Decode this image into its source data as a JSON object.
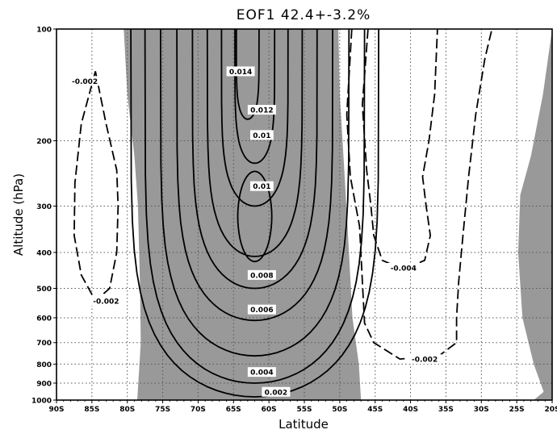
{
  "chart_data": {
    "type": "contour",
    "title": "EOF1  42.4+-3.2%",
    "xlabel": "Latitude",
    "ylabel": "Altitude     (hPa)",
    "grid": true,
    "xlim": [
      -90,
      -20
    ],
    "ylim": [
      1000,
      100
    ],
    "y_scale": "log",
    "x_ticks": [
      "90S",
      "85S",
      "80S",
      "75S",
      "70S",
      "65S",
      "60S",
      "55S",
      "50S",
      "45S",
      "40S",
      "35S",
      "30S",
      "25S",
      "20S"
    ],
    "y_ticks": [
      "100",
      "200",
      "300",
      "400",
      "500",
      "600",
      "700",
      "800",
      "900",
      "1000"
    ],
    "shading": "regions with positive values shaded gray",
    "contour_labels": [
      {
        "text": "0.014",
        "lat": -64,
        "p": 130
      },
      {
        "text": "0.012",
        "lat": -61,
        "p": 165
      },
      {
        "text": "0.01",
        "lat": -61,
        "p": 193
      },
      {
        "text": "0.01",
        "lat": -61,
        "p": 265
      },
      {
        "text": "0.008",
        "lat": -61,
        "p": 460
      },
      {
        "text": "0.006",
        "lat": -61,
        "p": 570
      },
      {
        "text": "0.004",
        "lat": -61,
        "p": 840
      },
      {
        "text": "0.002",
        "lat": -59,
        "p": 950
      },
      {
        "text": "-0.002",
        "lat": -86,
        "p": 138
      },
      {
        "text": "-0.002",
        "lat": -83,
        "p": 540
      },
      {
        "text": "-0.004",
        "lat": -41,
        "p": 440
      },
      {
        "text": "-0.002",
        "lat": -38,
        "p": 775
      }
    ]
  }
}
